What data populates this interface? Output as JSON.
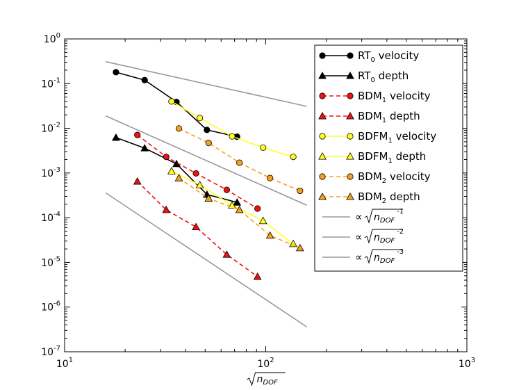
{
  "chart_data": {
    "type": "line",
    "xscale": "log",
    "yscale": "log",
    "xlim": [
      10,
      1000
    ],
    "ylim": [
      1e-07,
      1
    ],
    "xlabel": "√n_DOF",
    "ylabel": "",
    "grid": false,
    "legend_position": "upper-right",
    "x_ticks": [
      {
        "value": 10,
        "base": "10",
        "exp": "1"
      },
      {
        "value": 100,
        "base": "10",
        "exp": "2"
      },
      {
        "value": 1000,
        "base": "10",
        "exp": "3"
      }
    ],
    "y_ticks": [
      {
        "value": 1,
        "base": "10",
        "exp": "0"
      },
      {
        "value": 0.1,
        "base": "10",
        "exp": "-1"
      },
      {
        "value": 0.01,
        "base": "10",
        "exp": "-2"
      },
      {
        "value": 0.001,
        "base": "10",
        "exp": "-3"
      },
      {
        "value": 0.0001,
        "base": "10",
        "exp": "-4"
      },
      {
        "value": 1e-05,
        "base": "10",
        "exp": "-5"
      },
      {
        "value": 1e-06,
        "base": "10",
        "exp": "-6"
      },
      {
        "value": 1e-07,
        "base": "10",
        "exp": "-7"
      }
    ],
    "series": [
      {
        "name": "RT0 velocity",
        "label_base": "RT",
        "label_sub": "0",
        "label_rest": " velocity",
        "color": "#000000",
        "marker": "circle",
        "dash": "solid",
        "x": [
          18,
          25,
          36,
          51,
          72
        ],
        "y": [
          0.18,
          0.12,
          0.039,
          0.0092,
          0.0065
        ]
      },
      {
        "name": "RT0 depth",
        "label_base": "RT",
        "label_sub": "0",
        "label_rest": " depth",
        "color": "#000000",
        "marker": "triangle",
        "dash": "solid",
        "x": [
          18,
          25,
          36,
          51,
          72
        ],
        "y": [
          0.0062,
          0.0036,
          0.0016,
          0.00033,
          0.00022
        ]
      },
      {
        "name": "BDM1 velocity",
        "label_base": "BDM",
        "label_sub": "1",
        "label_rest": " velocity",
        "color": "#ee1111",
        "marker": "circle",
        "dash": "dashed",
        "x": [
          23,
          32,
          45,
          64,
          91
        ],
        "y": [
          0.0071,
          0.0023,
          0.00098,
          0.00042,
          0.00016
        ]
      },
      {
        "name": "BDM1 depth",
        "label_base": "BDM",
        "label_sub": "1",
        "label_rest": " depth",
        "color": "#ee1111",
        "marker": "triangle",
        "dash": "dashed",
        "x": [
          23,
          32,
          45,
          64,
          91
        ],
        "y": [
          0.00065,
          0.00015,
          6.2e-05,
          1.5e-05,
          4.8e-06
        ]
      },
      {
        "name": "BDFM1 velocity",
        "label_base": "BDFM",
        "label_sub": "1",
        "label_rest": " velocity",
        "color": "#ffff22",
        "marker": "circle",
        "dash": "solid",
        "x": [
          34,
          47,
          68,
          97,
          137
        ],
        "y": [
          0.04,
          0.017,
          0.0066,
          0.0037,
          0.0023
        ]
      },
      {
        "name": "BDFM1 depth",
        "label_base": "BDFM",
        "label_sub": "1",
        "label_rest": " depth",
        "color": "#ffff22",
        "marker": "triangle",
        "dash": "solid",
        "x": [
          34,
          47,
          68,
          97,
          137
        ],
        "y": [
          0.0011,
          0.00054,
          0.00019,
          8.5e-05,
          2.6e-05
        ]
      },
      {
        "name": "BDM2 velocity",
        "label_base": "BDM",
        "label_sub": "2",
        "label_rest": " velocity",
        "color": "#f5a020",
        "marker": "circle",
        "dash": "dashed",
        "x": [
          37,
          52,
          74,
          105,
          148
        ],
        "y": [
          0.0099,
          0.0047,
          0.0017,
          0.00077,
          0.0004
        ]
      },
      {
        "name": "BDM2 depth",
        "label_base": "BDM",
        "label_sub": "2",
        "label_rest": " depth",
        "color": "#f5a020",
        "marker": "triangle",
        "dash": "dashed",
        "x": [
          37,
          52,
          74,
          105,
          148
        ],
        "y": [
          0.00077,
          0.00027,
          0.00015,
          4e-05,
          2.1e-05
        ]
      }
    ],
    "reference_lines": [
      {
        "name": "∝ √n_DOF ^-1",
        "exp": "-1",
        "color": "#999999",
        "x": [
          16,
          160
        ],
        "y": [
          0.31,
          0.031
        ]
      },
      {
        "name": "∝ √n_DOF ^-2",
        "exp": "-2",
        "color": "#999999",
        "x": [
          16,
          160
        ],
        "y": [
          0.019,
          0.00019
        ]
      },
      {
        "name": "∝ √n_DOF ^-3",
        "exp": "-3",
        "color": "#999999",
        "x": [
          16,
          160
        ],
        "y": [
          0.00036,
          3.6e-07
        ]
      }
    ]
  }
}
